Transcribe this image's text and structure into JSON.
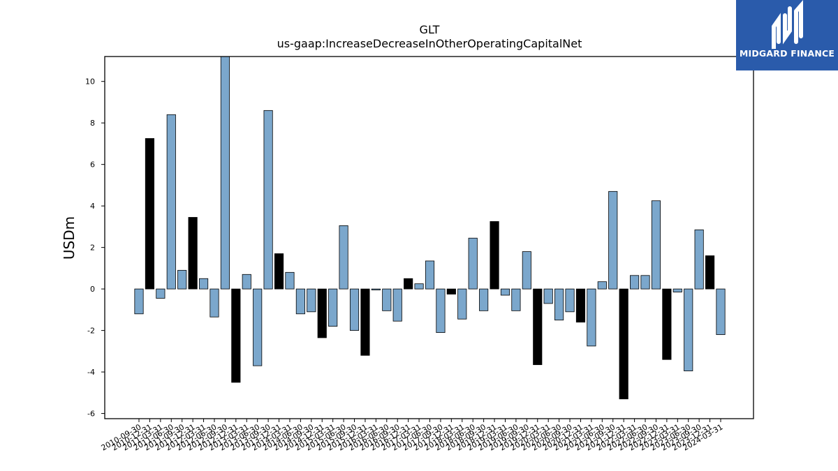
{
  "chart_data": {
    "type": "bar",
    "title": "GLT",
    "subtitle": "us-gaap:IncreaseDecreaseInOtherOperatingCapitalNet",
    "xlabel": "",
    "ylabel": "USDm",
    "ylim": [
      -6.25,
      11.2
    ],
    "yticks": [
      -6,
      -4,
      -2,
      0,
      2,
      4,
      6,
      8,
      10
    ],
    "grid": false,
    "legend": "none",
    "colors": {
      "default": "#7ba7cc",
      "highlight": "#000000",
      "edge": "#000000"
    },
    "categories": [
      "2010-09-30",
      "2010-12-31",
      "2011-03-31",
      "2011-06-30",
      "2011-09-30",
      "2011-12-31",
      "2012-03-31",
      "2012-06-30",
      "2012-09-30",
      "2012-12-31",
      "2013-03-31",
      "2013-06-30",
      "2013-09-30",
      "2013-12-31",
      "2014-03-31",
      "2014-06-30",
      "2014-09-30",
      "2014-12-31",
      "2015-03-31",
      "2015-06-30",
      "2015-09-30",
      "2015-12-31",
      "2016-03-31",
      "2016-06-30",
      "2016-09-30",
      "2016-12-31",
      "2017-03-31",
      "2017-06-30",
      "2017-09-30",
      "2017-12-31",
      "2018-03-31",
      "2018-06-30",
      "2018-09-30",
      "2018-12-31",
      "2019-03-31",
      "2019-06-30",
      "2019-09-30",
      "2019-12-31",
      "2020-03-31",
      "2020-06-30",
      "2020-09-30",
      "2020-12-31",
      "2021-03-31",
      "2021-06-30",
      "2021-09-30",
      "2021-12-31",
      "2022-03-31",
      "2022-06-30",
      "2022-09-30",
      "2022-12-31",
      "2023-03-31",
      "2023-06-30",
      "2023-09-30",
      "2023-12-31",
      "2024-03-31"
    ],
    "values": [
      -1.2,
      7.25,
      -0.45,
      8.4,
      0.9,
      3.45,
      0.5,
      -1.35,
      11.25,
      -4.5,
      0.7,
      -3.7,
      8.6,
      1.7,
      0.8,
      -1.2,
      -1.1,
      -2.35,
      -1.8,
      3.05,
      -2.0,
      -3.2,
      -0.05,
      -1.05,
      -1.55,
      0.5,
      0.25,
      1.35,
      -2.1,
      -0.25,
      -1.45,
      2.45,
      -1.05,
      3.25,
      -0.3,
      -1.05,
      1.8,
      -3.65,
      -0.7,
      -1.5,
      -1.1,
      -1.6,
      -2.75,
      0.35,
      4.7,
      -5.3,
      0.65,
      0.65,
      4.25,
      -3.4,
      -0.15,
      -3.95,
      2.85,
      1.6,
      -2.2
    ],
    "highlight": [
      false,
      true,
      false,
      false,
      false,
      true,
      false,
      false,
      false,
      true,
      false,
      false,
      false,
      true,
      false,
      false,
      false,
      true,
      false,
      false,
      false,
      true,
      false,
      false,
      false,
      true,
      false,
      false,
      false,
      true,
      false,
      false,
      false,
      true,
      false,
      false,
      false,
      true,
      false,
      false,
      false,
      true,
      false,
      false,
      false,
      true,
      false,
      false,
      false,
      true,
      false,
      false,
      false,
      true,
      false
    ]
  },
  "logo": {
    "text": "MIDGARD FINANCE",
    "icon": "midgard-logo-icon",
    "background": "#2a5bab"
  }
}
